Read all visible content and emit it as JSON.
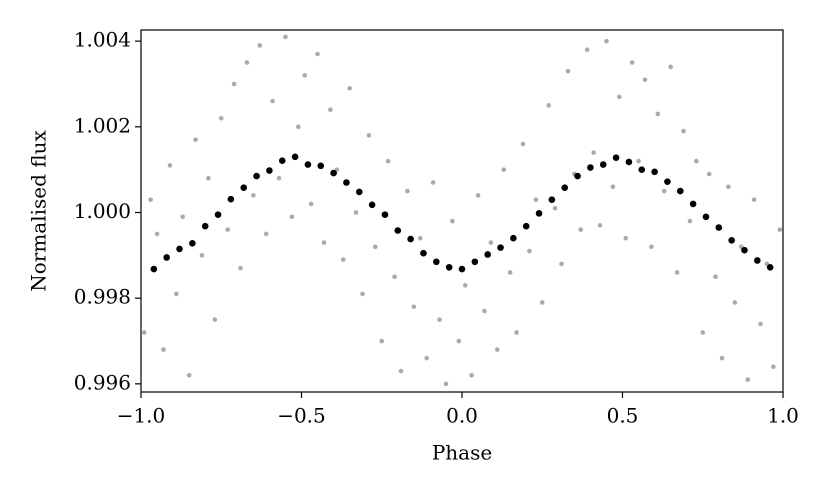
{
  "chart_data": {
    "type": "scatter",
    "x_label": "Phase",
    "y_label": "Normalised flux",
    "xlim": [
      -1,
      1
    ],
    "ylim": [
      0.99581,
      1.00426
    ],
    "xticks": [
      {
        "value": -1,
        "label": "−1.0"
      },
      {
        "value": -0.5,
        "label": "−0.5"
      },
      {
        "value": 0,
        "label": "0.0"
      },
      0.5,
      {
        "value": 1,
        "label": "1.0"
      }
    ],
    "yticks": [
      0.996,
      0.998,
      {
        "value": 1,
        "label": "1.000"
      },
      1.002,
      1.004
    ],
    "series": [
      {
        "color": "#aaaaaa",
        "size": 2.3,
        "x": [
          -0.99,
          -0.97,
          -0.95,
          -0.93,
          -0.91,
          -0.89,
          -0.87,
          -0.85,
          -0.83,
          -0.81,
          -0.79,
          -0.77,
          -0.75,
          -0.73,
          -0.71,
          -0.69,
          -0.67,
          -0.65,
          -0.63,
          -0.61,
          -0.59,
          -0.57,
          -0.55,
          -0.53,
          -0.51,
          -0.49,
          -0.47,
          -0.45,
          -0.43,
          -0.41,
          -0.39,
          -0.37,
          -0.35,
          -0.33,
          -0.31,
          -0.29,
          -0.27,
          -0.25,
          -0.23,
          -0.21,
          -0.19,
          -0.17,
          -0.15,
          -0.13,
          -0.11,
          -0.09,
          -0.07,
          -0.05,
          -0.03,
          -0.01,
          0.01,
          0.03,
          0.05,
          0.07,
          0.09,
          0.11,
          0.13,
          0.15,
          0.17,
          0.19,
          0.21,
          0.23,
          0.25,
          0.27,
          0.29,
          0.31,
          0.33,
          0.35,
          0.37,
          0.39,
          0.41,
          0.43,
          0.45,
          0.47,
          0.49,
          0.51,
          0.53,
          0.55,
          0.57,
          0.59,
          0.61,
          0.63,
          0.65,
          0.67,
          0.69,
          0.71,
          0.73,
          0.75,
          0.77,
          0.79,
          0.81,
          0.83,
          0.85,
          0.87,
          0.89,
          0.91,
          0.93,
          0.95,
          0.97,
          0.99
        ],
        "values": [
          0.9972,
          1.0003,
          0.9995,
          0.9968,
          1.0011,
          0.9981,
          0.9999,
          0.9962,
          1.0017,
          0.999,
          1.0008,
          0.9975,
          1.0022,
          0.9996,
          1.003,
          0.9987,
          1.0035,
          1.0004,
          1.0039,
          0.9995,
          1.0026,
          1.0008,
          1.0041,
          0.9999,
          1.002,
          1.0032,
          1.0002,
          1.0037,
          0.9993,
          1.0024,
          1.001,
          0.9989,
          1.0029,
          1.0,
          0.9981,
          1.0018,
          0.9992,
          0.997,
          1.0012,
          0.9985,
          0.9963,
          1.0005,
          0.9978,
          0.9994,
          0.9966,
          1.0007,
          0.9975,
          0.996,
          0.9998,
          0.997,
          0.9983,
          0.9962,
          1.0004,
          0.9977,
          0.9993,
          0.9968,
          1.001,
          0.9986,
          0.9972,
          1.0016,
          0.9991,
          1.0003,
          0.9979,
          1.0025,
          1.0001,
          0.9988,
          1.0033,
          1.0009,
          0.9996,
          1.0038,
          1.0014,
          0.9997,
          1.004,
          1.0006,
          1.0027,
          0.9994,
          1.0035,
          1.0012,
          1.0031,
          0.9992,
          1.0023,
          1.0005,
          1.0034,
          0.9986,
          1.0019,
          0.9998,
          1.0012,
          0.9972,
          1.0009,
          0.9985,
          0.9966,
          1.0006,
          0.9979,
          0.9992,
          0.9961,
          1.0003,
          0.9974,
          0.9988,
          0.9964,
          0.9996
        ]
      },
      {
        "color": "#000000",
        "size": 3.3,
        "x": [
          -0.96,
          -0.92,
          -0.88,
          -0.84,
          -0.8,
          -0.76,
          -0.72,
          -0.68,
          -0.64,
          -0.6,
          -0.56,
          -0.52,
          -0.48,
          -0.44,
          -0.4,
          -0.36,
          -0.32,
          -0.28,
          -0.24,
          -0.2,
          -0.16,
          -0.12,
          -0.08,
          -0.04,
          0,
          0.04,
          0.08,
          0.12,
          0.16,
          0.2,
          0.24,
          0.28,
          0.32,
          0.36,
          0.4,
          0.44,
          0.48,
          0.52,
          0.56,
          0.6,
          0.64,
          0.68,
          0.72,
          0.76,
          0.8,
          0.84,
          0.88,
          0.92,
          0.96
        ],
        "values": [
          0.99868,
          0.99895,
          0.99915,
          0.99928,
          0.99968,
          0.99995,
          1.00031,
          1.00058,
          1.00085,
          1.00098,
          1.00121,
          1.0013,
          1.00112,
          1.00109,
          1.00092,
          1.0007,
          1.00048,
          1.00018,
          0.99995,
          0.99958,
          0.99938,
          0.99905,
          0.99885,
          0.99872,
          0.99868,
          0.99885,
          0.99902,
          0.99918,
          0.9994,
          0.99968,
          0.99998,
          1.0003,
          1.00058,
          1.00085,
          1.00105,
          1.00112,
          1.00128,
          1.00118,
          1.001,
          1.00095,
          1.00072,
          1.0005,
          1.0002,
          0.9999,
          0.99965,
          0.99935,
          0.99912,
          0.99888,
          0.99872
        ]
      }
    ]
  }
}
